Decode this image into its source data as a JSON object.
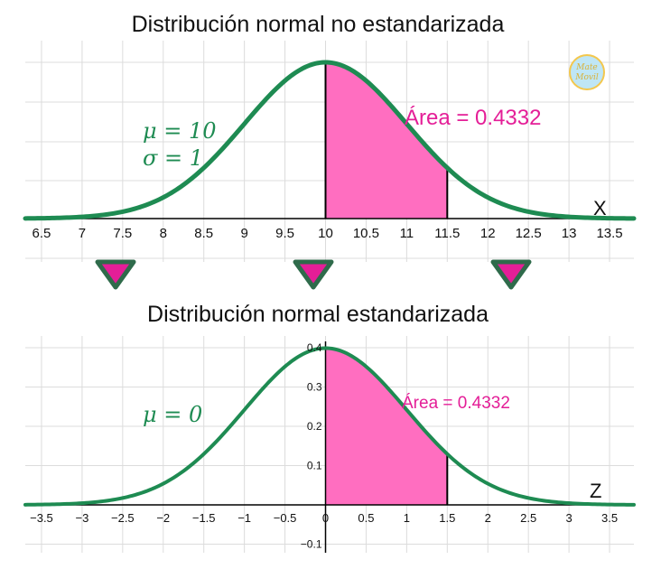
{
  "chart_data": [
    {
      "type": "area",
      "title": "Distribución normal no estandarizada",
      "axis_name": "X",
      "mu": 10,
      "sigma": 1,
      "mu_label": "μ = 10",
      "sigma_label": "σ = 1",
      "area_label": "Área = 0.4332",
      "shaded_from": 10,
      "shaded_to": 11.5,
      "xlim": [
        6.3,
        13.8
      ],
      "x_ticks": [
        "6.5",
        "7",
        "7.5",
        "8",
        "8.5",
        "9",
        "9.5",
        "10",
        "10.5",
        "11",
        "11.5",
        "12",
        "12.5",
        "13",
        "13.5"
      ],
      "colors": {
        "curve": "#1e8b52",
        "fill": "#ff6ec0",
        "area_text": "#e41e97",
        "grid": "#dcdcdc"
      }
    },
    {
      "type": "area",
      "title": "Distribución normal estandarizada",
      "axis_name": "Z",
      "mu": 0,
      "sigma": 1,
      "mu_label": "μ = 0",
      "area_label": "Área = 0.4332",
      "shaded_from": 0,
      "shaded_to": 1.5,
      "xlim": [
        -3.7,
        3.8
      ],
      "ylim": [
        -0.12,
        0.42
      ],
      "x_ticks": [
        "−3.5",
        "−3",
        "−2.5",
        "−2",
        "−1.5",
        "−1",
        "−0.5",
        "0",
        "0.5",
        "1",
        "1.5",
        "2",
        "2.5",
        "3",
        "3.5"
      ],
      "y_ticks": [
        "0.4",
        "0.3",
        "0.2",
        "0.1",
        "−0.1"
      ],
      "colors": {
        "curve": "#1e8b52",
        "fill": "#ff6ec0",
        "area_text": "#e41e97",
        "grid": "#dcdcdc"
      }
    }
  ],
  "arrows": {
    "count": 3,
    "fill": "#e41e97",
    "stroke": "#2f6b4b"
  },
  "logo": {
    "line1": "Mate",
    "line2": "Movil"
  }
}
